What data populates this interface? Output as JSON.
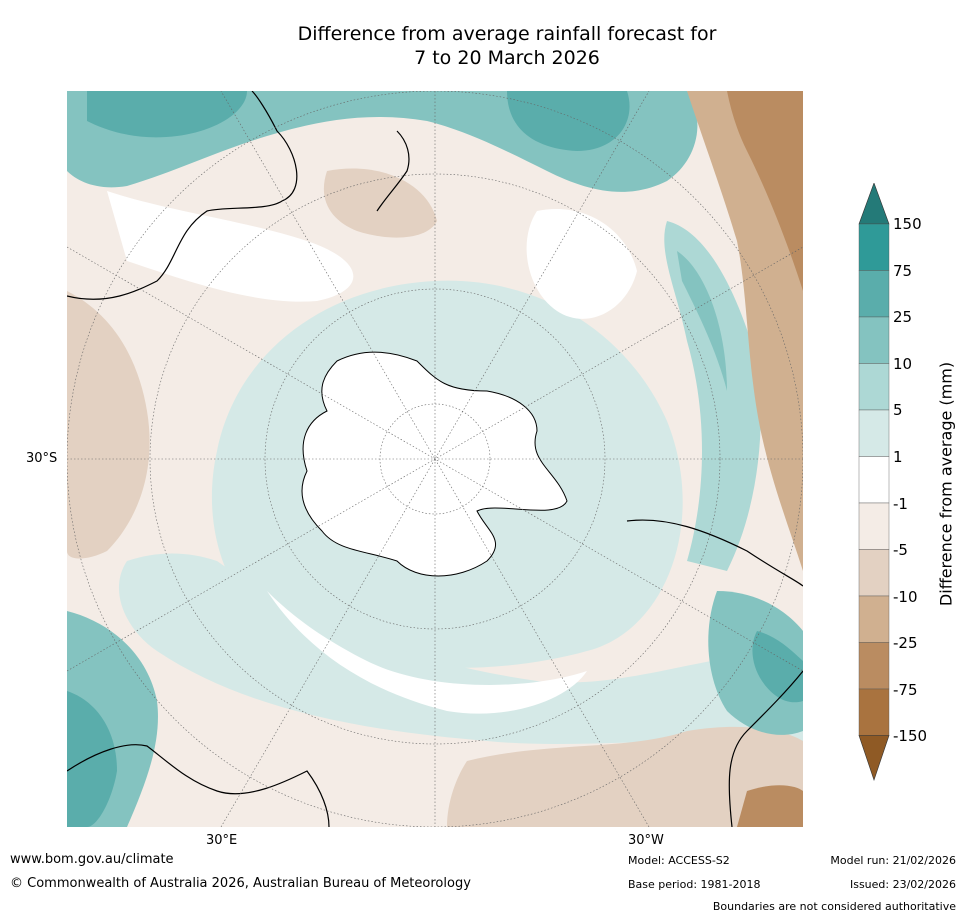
{
  "title": {
    "line1": "Difference from average rainfall forecast for",
    "line2": "7 to 20 March 2026"
  },
  "map": {
    "projection": "south-polar-stereographic",
    "lat_labels": [
      "30°S"
    ],
    "lon_labels": [
      "30°E",
      "30°W"
    ],
    "regions_shown": [
      "Antarctica",
      "Australia",
      "New Zealand",
      "South America",
      "Southern Africa",
      "Southern Ocean"
    ]
  },
  "colorbar": {
    "title": "Difference from average (mm)",
    "ticks": [
      "150",
      "75",
      "25",
      "10",
      "5",
      "1",
      "-1",
      "-5",
      "-10",
      "-25",
      "-75",
      "-150"
    ],
    "colors": {
      "over": "#247a78",
      "75_150": "#2f9a98",
      "25_75": "#5aadab",
      "10_25": "#84c3c0",
      "5_10": "#add8d5",
      "1_5": "#d5e9e7",
      "neutral": "#ffffff",
      "m5_m1": "#f4ece6",
      "m10_m5": "#e3d1c2",
      "m25_m10": "#d0b090",
      "m75_m25": "#ba8c61",
      "m150_m75": "#a9733f",
      "under": "#8f5a25"
    }
  },
  "footer": {
    "url": "www.bom.gov.au/climate",
    "copyright": "© Commonwealth of Australia 2026, Australian Bureau of Meteorology",
    "model": "Model: ACCESS-S2",
    "base_period": "Base period: 1981-2018",
    "model_run": "Model run: 21/02/2026",
    "issued": "Issued: 23/02/2026",
    "disclaimer": "Boundaries are not considered authoritative"
  }
}
